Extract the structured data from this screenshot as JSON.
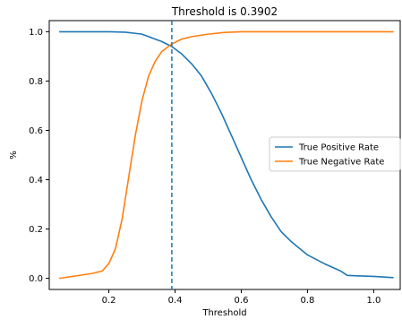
{
  "chart_data": {
    "type": "line",
    "title": "Threshold is 0.3902",
    "xlabel": "Threshold",
    "ylabel": "%",
    "xlim": [
      0.02,
      1.08
    ],
    "ylim": [
      -0.045,
      1.045
    ],
    "xticks": [
      0.2,
      0.4,
      0.6,
      0.8,
      1.0
    ],
    "xtick_labels": [
      "0.2",
      "0.4",
      "0.6",
      "0.8",
      "1.0"
    ],
    "yticks": [
      0.0,
      0.2,
      0.4,
      0.6,
      0.8,
      1.0
    ],
    "ytick_labels": [
      "0.0",
      "0.2",
      "0.4",
      "0.6",
      "0.8",
      "1.0"
    ],
    "grid": false,
    "legend_position": "center-right",
    "threshold_line": {
      "x": 0.3902,
      "style": "dashed",
      "color": "#1f77b4"
    },
    "series": [
      {
        "name": "True Positive Rate",
        "color": "#1f77b4",
        "x": [
          0.05,
          0.1,
          0.15,
          0.2,
          0.25,
          0.3,
          0.33,
          0.36,
          0.39,
          0.42,
          0.45,
          0.48,
          0.51,
          0.54,
          0.57,
          0.6,
          0.63,
          0.66,
          0.69,
          0.72,
          0.75,
          0.8,
          0.85,
          0.9,
          0.92,
          0.95,
          1.0,
          1.06
        ],
        "y": [
          1.0,
          1.0,
          1.0,
          1.0,
          0.998,
          0.99,
          0.975,
          0.96,
          0.94,
          0.91,
          0.87,
          0.82,
          0.75,
          0.67,
          0.58,
          0.49,
          0.4,
          0.32,
          0.25,
          0.19,
          0.15,
          0.095,
          0.06,
          0.03,
          0.012,
          0.01,
          0.008,
          0.003
        ]
      },
      {
        "name": "True Negative Rate",
        "color": "#ff7f0e",
        "x": [
          0.05,
          0.1,
          0.15,
          0.18,
          0.2,
          0.22,
          0.24,
          0.26,
          0.28,
          0.3,
          0.32,
          0.34,
          0.36,
          0.38,
          0.3902,
          0.42,
          0.45,
          0.5,
          0.55,
          0.6,
          0.7,
          0.8,
          0.9,
          1.0,
          1.06
        ],
        "y": [
          0.0,
          0.01,
          0.02,
          0.03,
          0.06,
          0.12,
          0.24,
          0.41,
          0.58,
          0.72,
          0.82,
          0.88,
          0.92,
          0.94,
          0.95,
          0.97,
          0.98,
          0.99,
          0.997,
          1.0,
          1.0,
          1.0,
          1.0,
          1.0,
          1.0
        ]
      }
    ]
  }
}
